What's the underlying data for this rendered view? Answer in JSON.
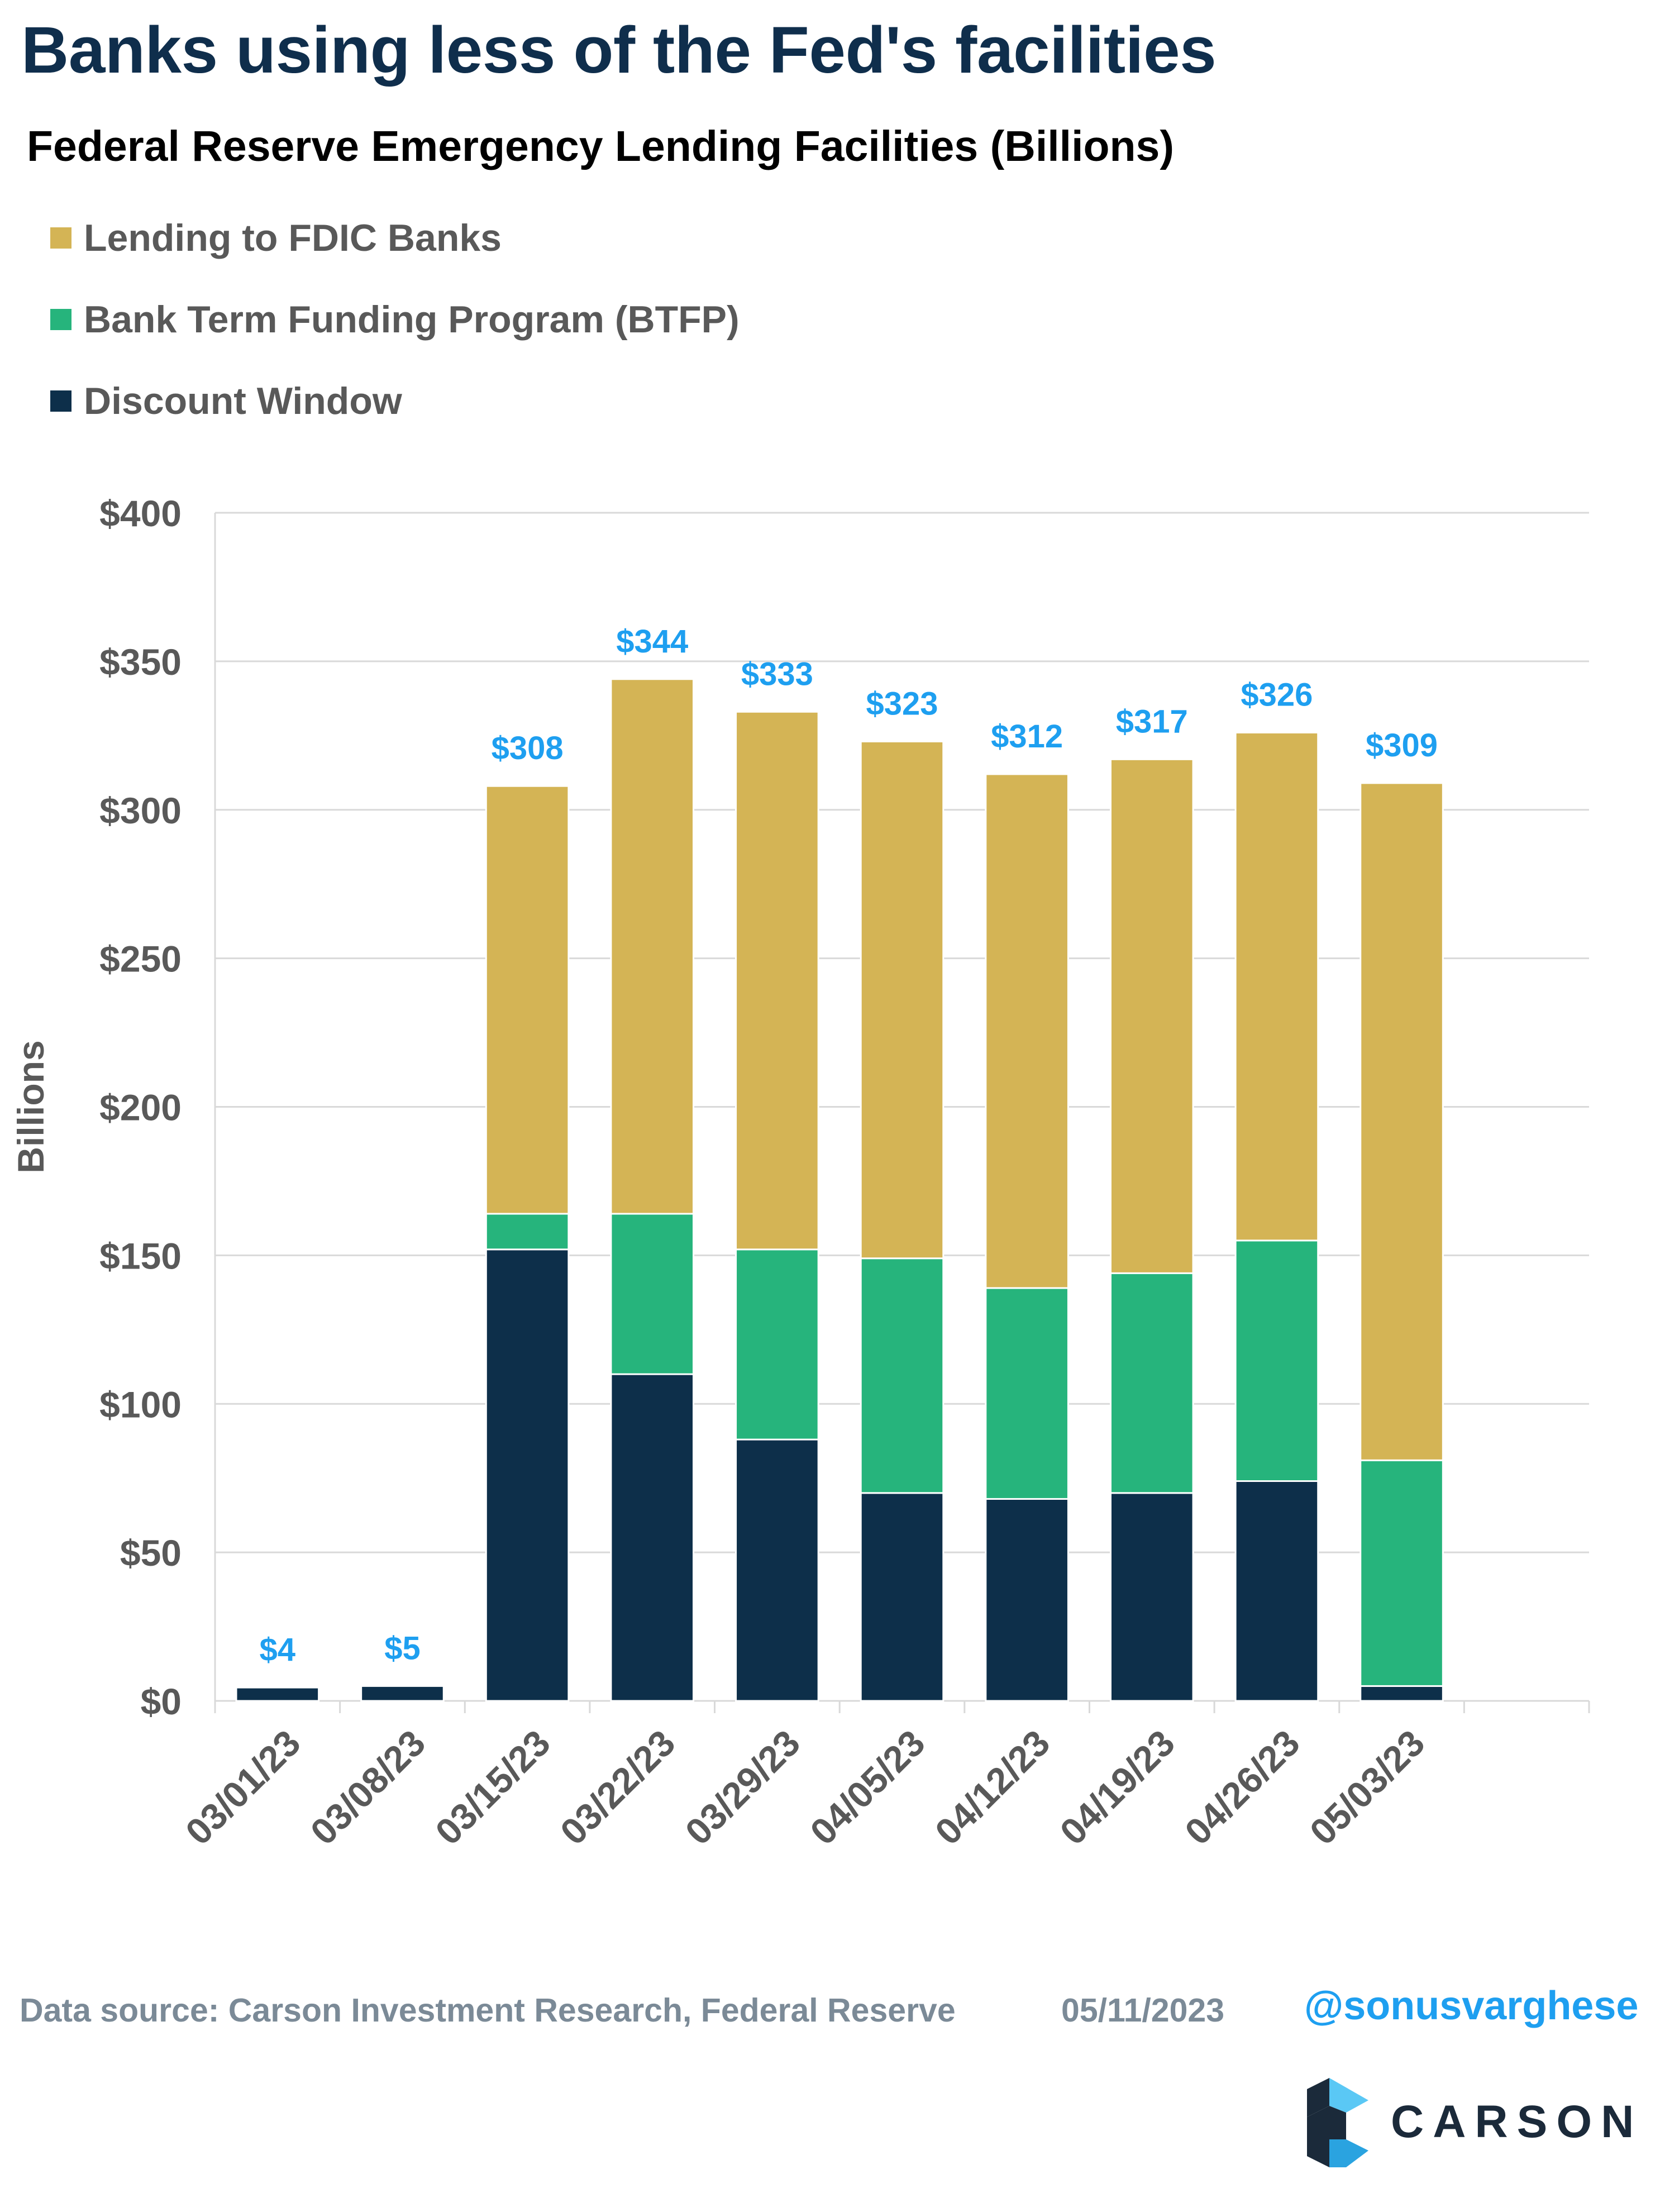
{
  "header": {
    "title": "Banks using less of the Fed's facilities",
    "subtitle": "Federal Reserve Emergency Lending Facilities (Billions)"
  },
  "legend": {
    "items": [
      {
        "label": "Lending to FDIC Banks",
        "color": "#d4b455"
      },
      {
        "label": "Bank Term Funding Program (BTFP)",
        "color": "#26b47c"
      },
      {
        "label": "Discount Window",
        "color": "#0d2f4a"
      }
    ]
  },
  "colors": {
    "total_label": "#1e9ff0",
    "axis_text": "#595959",
    "gridline": "#d9d9d9"
  },
  "chart_data": {
    "type": "bar",
    "stacked": true,
    "categories": [
      "03/01/23",
      "03/08/23",
      "03/15/23",
      "03/22/23",
      "03/29/23",
      "04/05/23",
      "04/12/23",
      "04/19/23",
      "04/26/23",
      "05/03/23"
    ],
    "series": [
      {
        "name": "Discount Window",
        "values": [
          4.5,
          5,
          152,
          110,
          88,
          70,
          68,
          70,
          74,
          5
        ]
      },
      {
        "name": "Bank Term Funding Program (BTFP)",
        "values": [
          0,
          0,
          12,
          54,
          64,
          79,
          71,
          74,
          81,
          76
        ]
      },
      {
        "name": "Lending to FDIC Banks",
        "values": [
          0,
          0,
          144,
          180,
          181,
          174,
          173,
          173,
          171,
          228
        ]
      }
    ],
    "total_labels": [
      "$4",
      "$5",
      "$308",
      "$344",
      "$333",
      "$323",
      "$312",
      "$317",
      "$326",
      "$309"
    ],
    "totals": [
      4.5,
      5,
      308,
      344,
      333,
      323,
      312,
      317,
      326,
      309
    ],
    "ylabel": "Billions",
    "ylim": [
      0,
      400
    ],
    "yticks": [
      0,
      50,
      100,
      150,
      200,
      250,
      300,
      350,
      400
    ],
    "ytick_labels": [
      "$0",
      "$50",
      "$100",
      "$150",
      "$200",
      "$250",
      "$300",
      "$350",
      "$400"
    ],
    "grid": true,
    "legend_position": "top-left"
  },
  "footer": {
    "source": "Data source: Carson Investment Research, Federal Reserve",
    "date": "05/11/2023",
    "handle": "@sonusvarghese",
    "logo_text": "CARSON"
  }
}
